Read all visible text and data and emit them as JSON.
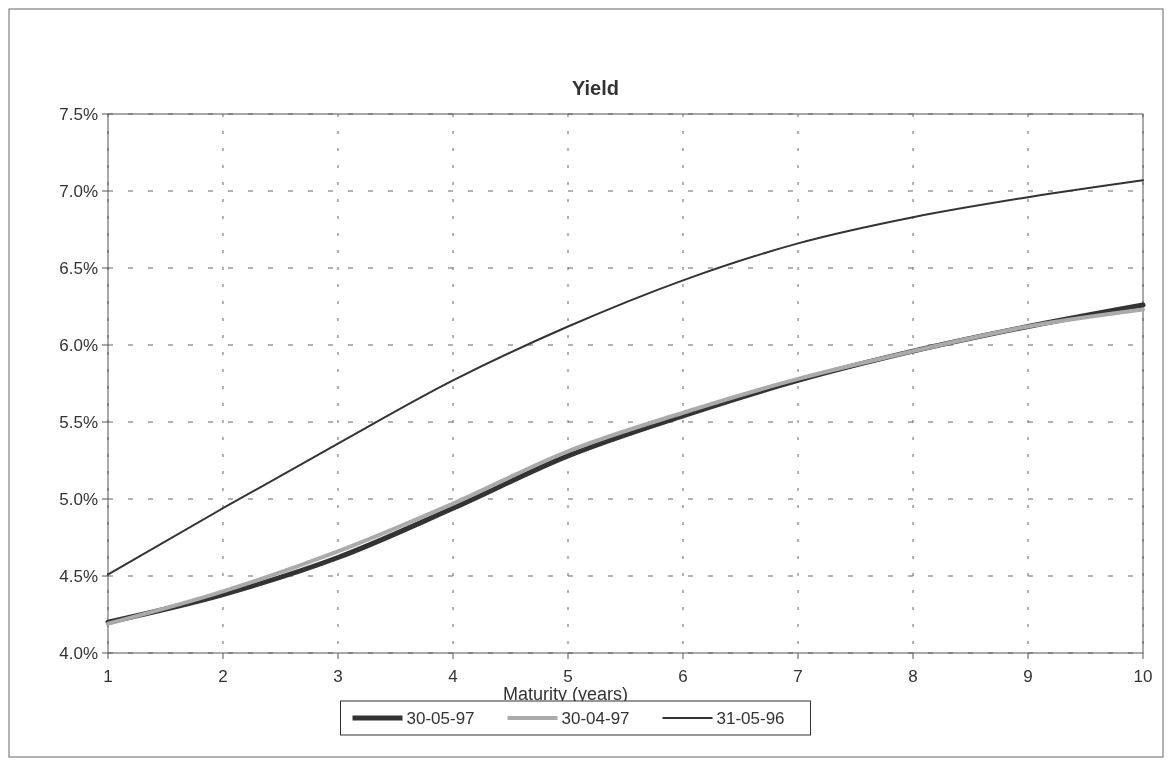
{
  "chart_data": {
    "type": "line",
    "title": "Yield",
    "xlabel": "Maturity (years)",
    "x": [
      1,
      2,
      3,
      4,
      5,
      6,
      7,
      8,
      9,
      10
    ],
    "series": [
      {
        "name": "30-05-97",
        "color": "#333333",
        "values": [
          4.2,
          4.38,
          4.62,
          4.94,
          5.28,
          5.54,
          5.77,
          5.96,
          6.12,
          6.26
        ]
      },
      {
        "name": "30-04-97",
        "color": "#aaaaaa",
        "values": [
          4.19,
          4.4,
          4.66,
          4.97,
          5.31,
          5.56,
          5.78,
          5.96,
          6.12,
          6.23
        ]
      },
      {
        "name": "31-05-96",
        "color": "#333333",
        "values": [
          4.51,
          4.94,
          5.36,
          5.77,
          6.12,
          6.42,
          6.66,
          6.83,
          6.96,
          7.07
        ]
      }
    ],
    "xlim": [
      1,
      10
    ],
    "xticks": [
      1,
      2,
      3,
      4,
      5,
      6,
      7,
      8,
      9,
      10
    ],
    "ylim": [
      4,
      7.5
    ],
    "yticks": [
      {
        "value": 4,
        "label": "4.0%"
      },
      {
        "value": 4.5,
        "label": "4.5%"
      },
      {
        "value": 5,
        "label": "5.0%"
      },
      {
        "value": 5.5,
        "label": "5.5%"
      },
      {
        "value": 6,
        "label": "6.0%"
      },
      {
        "value": 6.5,
        "label": "6.5%"
      },
      {
        "value": 7,
        "label": "7.0%"
      },
      {
        "value": 7.5,
        "label": "7.5%"
      }
    ],
    "grid": true,
    "legend": "bottom",
    "line_style": "solid"
  }
}
